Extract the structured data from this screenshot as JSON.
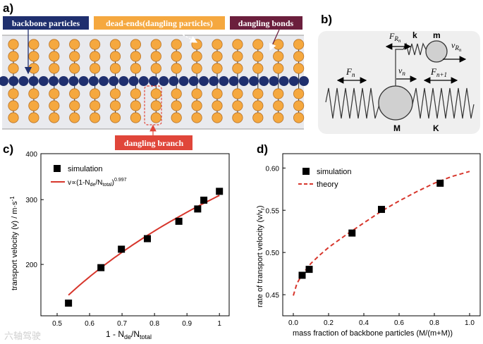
{
  "panels": {
    "a": {
      "tag": "a)",
      "labels": {
        "backbone": "backbone particles",
        "deadends": "dead-ends(dangling particles)",
        "bonds": "dangling bonds",
        "branch": "dangling branch"
      },
      "colors": {
        "backbone": "#1f2f6e",
        "dangling": "#f5a83f",
        "bonds_box": "#6b1f3d",
        "branch_box": "#e0463a"
      }
    },
    "b": {
      "tag": "b)",
      "labels": {
        "F_R": "F",
        "F_R_sub": "R",
        "F_R_subsub": "n",
        "k": "k",
        "m": "m",
        "v_R": "v",
        "v_R_sub": "R",
        "v_R_subsub": "n",
        "F_n": "F",
        "F_n_sub": "n",
        "v_n": "v",
        "v_n_sub": "n",
        "F_n1": "F",
        "F_n1_sub": "n+1",
        "M": "M",
        "K": "K"
      }
    }
  },
  "chart_data": [
    {
      "panel": "c)",
      "type": "scatter",
      "xlabel": "1 - N",
      "xlabel_sub1": "de",
      "xlabel_mid": "/N",
      "xlabel_sub2": "total",
      "ylabel": "transport velocity (v) / m·s",
      "ylabel_sup": "-1",
      "xlim": [
        0.45,
        1.03
      ],
      "ylim": [
        145,
        400
      ],
      "ylog": true,
      "xticks": [
        0.5,
        0.6,
        0.7,
        0.8,
        0.9,
        1
      ],
      "xtick_labels": [
        "0.5",
        "0.6",
        "0.7",
        "0.8",
        "0.9",
        "1"
      ],
      "yticks": [
        200,
        300,
        400
      ],
      "ytick_labels": [
        "200",
        "300",
        "400"
      ],
      "series": [
        {
          "name": "simulation",
          "x": [
            0.535,
            0.635,
            0.698,
            0.778,
            0.875,
            0.933,
            0.952,
            1.0
          ],
          "y": [
            157,
            196,
            220,
            235,
            262,
            283,
            299,
            316
          ]
        },
        {
          "name": "fit",
          "exponent": 0.997,
          "x_range": [
            0.535,
            1.0
          ],
          "coef": 308
        }
      ],
      "legend": {
        "position": "top-left",
        "entries": [
          "simulation"
        ],
        "fit_prefix": "v∝(1-N",
        "fit_s1": "de",
        "fit_mid": "/N",
        "fit_s2": "total",
        "fit_close": ")",
        "fit_exp": "0.997"
      }
    },
    {
      "panel": "d)",
      "type": "scatter",
      "xlabel": "mass fraction of backbone particles (M/(m+M))",
      "ylabel": "rate of transport velocity (v/v",
      "ylabel_sub": "r",
      "ylabel_close": ")",
      "xlim": [
        -0.06,
        1.06
      ],
      "ylim": [
        0.425,
        0.617
      ],
      "xticks": [
        0.0,
        0.2,
        0.4,
        0.6,
        0.8,
        1.0
      ],
      "xtick_labels": [
        "0.0",
        "0.2",
        "0.4",
        "0.6",
        "0.8",
        "1.0"
      ],
      "yticks": [
        0.45,
        0.5,
        0.55,
        0.6
      ],
      "ytick_labels": [
        "0.45",
        "0.50",
        "0.55",
        "0.60"
      ],
      "series": [
        {
          "name": "simulation",
          "x": [
            0.05,
            0.09,
            0.333,
            0.5,
            0.833
          ],
          "y": [
            0.473,
            0.48,
            0.523,
            0.551,
            0.582
          ]
        },
        {
          "name": "theory",
          "x": [
            0.0,
            0.02,
            0.05,
            0.1,
            0.15,
            0.2,
            0.3,
            0.4,
            0.5,
            0.6,
            0.7,
            0.8,
            0.9,
            1.0
          ],
          "y": [
            0.449,
            0.463,
            0.474,
            0.487,
            0.497,
            0.506,
            0.521,
            0.535,
            0.549,
            0.561,
            0.572,
            0.582,
            0.59,
            0.596
          ]
        }
      ],
      "legend": {
        "position": "top-left",
        "entries": [
          "simulation",
          "theory"
        ]
      }
    }
  ],
  "watermark": "六轴驾驶"
}
